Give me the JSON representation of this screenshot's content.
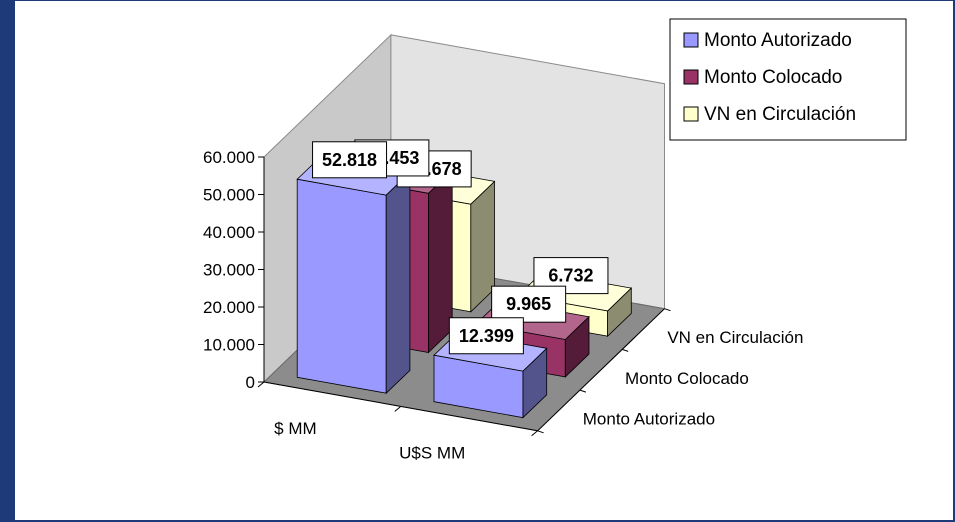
{
  "chart_data": {
    "type": "bar",
    "title": "",
    "categories": [
      "$ MM",
      "U$S MM"
    ],
    "series": [
      {
        "name": "Monto Autorizado",
        "values": [
          52818,
          12399
        ],
        "labels": [
          "52.818",
          "12.399"
        ],
        "color": "#9999ff"
      },
      {
        "name": "Monto Colocado",
        "values": [
          42453,
          9965
        ],
        "labels": [
          "42.453",
          "9.965"
        ],
        "color": "#993366"
      },
      {
        "name": "VN en Circulación",
        "values": [
          28678,
          6732
        ],
        "labels": [
          "28.678",
          "6.732"
        ],
        "color": "#ffffcc"
      }
    ],
    "yticks": [
      "0",
      "10.000",
      "20.000",
      "30.000",
      "40.000",
      "50.000",
      "60.000"
    ],
    "ylim": [
      0,
      60000
    ],
    "grid": false,
    "legend_position": "top-right",
    "is_3d": true,
    "frame_color": "#1f3a78"
  }
}
